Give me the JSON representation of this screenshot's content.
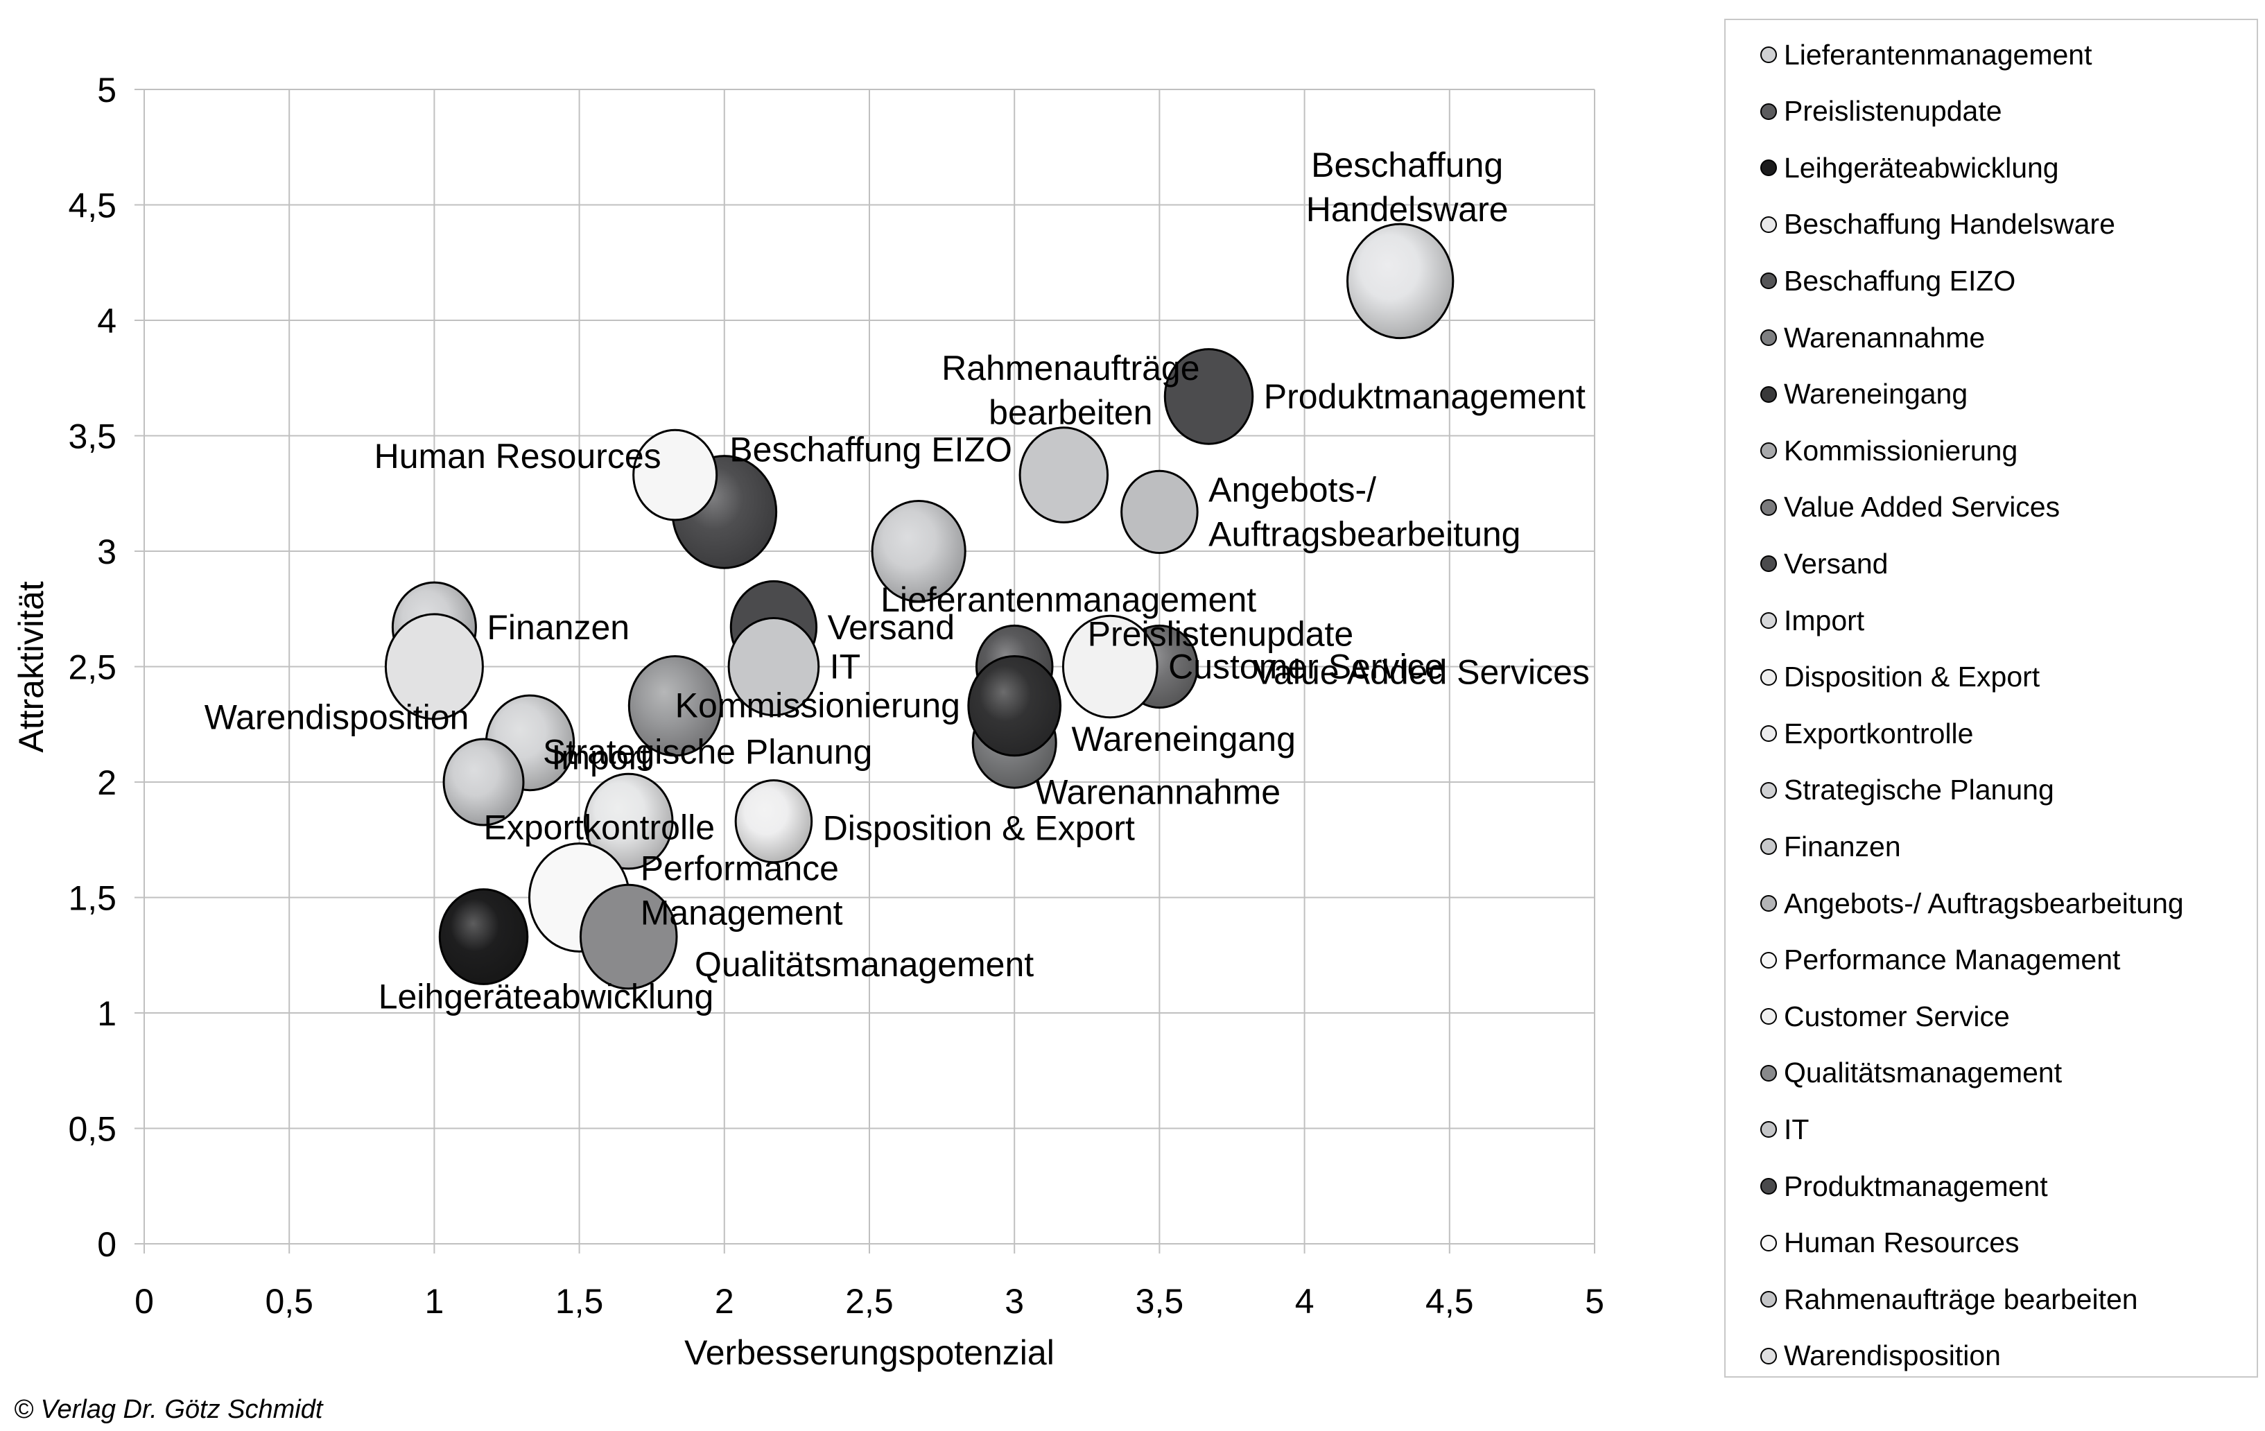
{
  "chart_data": {
    "type": "scatter",
    "subtype": "bubble",
    "title": "",
    "xlabel": "Verbesserungspotenzial",
    "ylabel": "Attraktivität",
    "xlim": [
      0,
      5
    ],
    "ylim": [
      0,
      5
    ],
    "xticks": [
      "0",
      "0,5",
      "1",
      "1,5",
      "2",
      "2,5",
      "3",
      "3,5",
      "4",
      "4,5",
      "5"
    ],
    "yticks": [
      "0",
      "0,5",
      "1",
      "1,5",
      "2",
      "2,5",
      "3",
      "3,5",
      "4",
      "4,5",
      "5"
    ],
    "xtick_values": [
      0,
      0.5,
      1,
      1.5,
      2,
      2.5,
      3,
      3.5,
      4,
      4.5,
      5
    ],
    "ytick_values": [
      0,
      0.5,
      1,
      1.5,
      2,
      2.5,
      3,
      3.5,
      4,
      4.5,
      5
    ],
    "grid": true,
    "legend_position": "right",
    "series": [
      {
        "name": "Lieferantenmanagement",
        "x": 2.67,
        "y": 3.0,
        "size": 45,
        "color": "#cfd0d2",
        "shaded": true,
        "label_lines": [
          "Lieferantenmanagement"
        ],
        "label_pos": "below-right"
      },
      {
        "name": "Preislistenupdate",
        "x": 3.0,
        "y": 2.5,
        "size": 30,
        "color": "#5a5a5c",
        "shaded": true,
        "label_lines": [
          "Preislistenupdate"
        ],
        "label_pos": "above-right"
      },
      {
        "name": "Leihgeräteabwicklung",
        "x": 1.17,
        "y": 1.33,
        "size": 40,
        "color": "#1e1e1f",
        "shaded": true,
        "label_lines": [
          "Leihgeräteabwicklung"
        ],
        "label_pos": "below"
      },
      {
        "name": "Beschaffung Handelsware",
        "x": 4.33,
        "y": 4.17,
        "size": 58,
        "color": "#e4e5e7",
        "shaded": true,
        "label_lines": [
          "Beschaffung",
          "Handelsware"
        ],
        "label_pos": "above"
      },
      {
        "name": "Beschaffung EIZO",
        "x": 2.0,
        "y": 3.17,
        "size": 56,
        "color": "#4f4f51",
        "shaded": true,
        "label_lines": [
          "Beschaffung EIZO"
        ],
        "label_pos": "above-right"
      },
      {
        "name": "Warenannahme",
        "x": 3.0,
        "y": 2.17,
        "size": 36,
        "color": "#7c7d7f",
        "shaded": true,
        "label_lines": [
          "Warenannahme"
        ],
        "label_pos": "below-right"
      },
      {
        "name": "Wareneingang",
        "x": 3.0,
        "y": 2.33,
        "size": 44,
        "color": "#333334",
        "shaded": true,
        "label_lines": [
          "Wareneingang"
        ],
        "label_pos": "right"
      },
      {
        "name": "Kommissionierung",
        "x": 1.83,
        "y": 2.33,
        "size": 44,
        "color": "#9a9b9d",
        "shaded": true,
        "label_lines": [
          "Kommissionierung"
        ],
        "label_pos": "below-right"
      },
      {
        "name": "Value Added Services",
        "x": 3.5,
        "y": 2.5,
        "size": 30,
        "color": "#727274",
        "shaded": true,
        "label_lines": [
          "Value Added Services"
        ],
        "label_pos": "below-right"
      },
      {
        "name": "Versand",
        "x": 2.17,
        "y": 2.67,
        "size": 38,
        "color": "#4b4b4d",
        "shaded": false,
        "label_lines": [
          "Versand"
        ],
        "label_pos": "right"
      },
      {
        "name": "Import",
        "x": 1.33,
        "y": 2.17,
        "size": 40,
        "color": "#d4d5d7",
        "shaded": true,
        "label_lines": [
          "Import"
        ],
        "label_pos": "below-right"
      },
      {
        "name": "Disposition & Export",
        "x": 2.17,
        "y": 1.83,
        "size": 30,
        "color": "#eeeeef",
        "shaded": true,
        "label_lines": [
          "Disposition & Export"
        ],
        "label_pos": "right"
      },
      {
        "name": "Exportkontrolle",
        "x": 1.17,
        "y": 2.0,
        "size": 33,
        "color": "#cfd0d2",
        "shaded": true,
        "label_lines": [
          "Exportkontrolle"
        ],
        "label_pos": "below"
      },
      {
        "name": "Strategische Planung",
        "x": 1.67,
        "y": 1.83,
        "size": 40,
        "color": "#e6e7e8",
        "shaded": true,
        "label_lines": [
          "Strategische Planung"
        ],
        "label_pos": "above-right"
      },
      {
        "name": "Finanzen",
        "x": 1.0,
        "y": 2.67,
        "size": 36,
        "color": "#cfd0d2",
        "shaded": true,
        "label_lines": [
          "Finanzen"
        ],
        "label_pos": "right"
      },
      {
        "name": "Angebots-/ Auftragsbearbeitung",
        "x": 3.5,
        "y": 3.17,
        "size": 30,
        "color": "#bdbec0",
        "shaded": false,
        "label_lines": [
          "Angebots-/",
          "Auftragsbearbeitung"
        ],
        "label_pos": "right"
      },
      {
        "name": "Performance Management",
        "x": 1.5,
        "y": 1.5,
        "size": 52,
        "color": "#f8f8f8",
        "shaded": false,
        "label_lines": [
          "Performance",
          "Management"
        ],
        "label_pos": "right"
      },
      {
        "name": "Customer Service",
        "x": 3.33,
        "y": 2.5,
        "size": 46,
        "color": "#f2f2f2",
        "shaded": false,
        "label_lines": [
          "Customer Service"
        ],
        "label_pos": "right"
      },
      {
        "name": "Qualitätsmanagement",
        "x": 1.67,
        "y": 1.33,
        "size": 48,
        "color": "#8a8a8c",
        "shaded": false,
        "label_lines": [
          "Qualitätsmanagement"
        ],
        "label_pos": "right"
      },
      {
        "name": "IT",
        "x": 2.17,
        "y": 2.5,
        "size": 42,
        "color": "#c6c7c9",
        "shaded": false,
        "label_lines": [
          "IT"
        ],
        "label_pos": "right"
      },
      {
        "name": "Produktmanagement",
        "x": 3.67,
        "y": 3.67,
        "size": 40,
        "color": "#4c4c4e",
        "shaded": false,
        "label_lines": [
          "Produktmanagement"
        ],
        "label_pos": "right"
      },
      {
        "name": "Human Resources",
        "x": 1.83,
        "y": 3.33,
        "size": 36,
        "color": "#f6f6f6",
        "shaded": false,
        "label_lines": [
          "Human Resources"
        ],
        "label_pos": "left"
      },
      {
        "name": "Rahmenaufträge bearbeiten",
        "x": 3.17,
        "y": 3.33,
        "size": 40,
        "color": "#c6c7c9",
        "shaded": false,
        "label_lines": [
          "Rahmenaufträge",
          "bearbeiten"
        ],
        "label_pos": "above"
      },
      {
        "name": "Warendisposition",
        "x": 1.0,
        "y": 2.5,
        "size": 49,
        "color": "#e2e2e3",
        "shaded": false,
        "label_lines": [
          "Warendisposition"
        ],
        "label_pos": "below-left"
      }
    ]
  },
  "legend": {
    "items": [
      {
        "label": "Lieferantenmanagement",
        "color": "#d0d1d3"
      },
      {
        "label": "Preislistenupdate",
        "color": "#5c5c5e"
      },
      {
        "label": "Leihgeräteabwicklung",
        "color": "#1c1c1d"
      },
      {
        "label": "Beschaffung Handelsware",
        "color": "#e8e8e9"
      },
      {
        "label": "Beschaffung EIZO",
        "color": "#555557"
      },
      {
        "label": "Warenannahme",
        "color": "#7e7f81"
      },
      {
        "label": "Wareneingang",
        "color": "#39393a"
      },
      {
        "label": "Kommissionierung",
        "color": "#a8a9ab"
      },
      {
        "label": "Value Added Services",
        "color": "#7a7a7c"
      },
      {
        "label": "Versand",
        "color": "#4b4b4d"
      },
      {
        "label": "Import",
        "color": "#d6d7d9"
      },
      {
        "label": "Disposition & Export",
        "color": "#efefef"
      },
      {
        "label": "Exportkontrolle",
        "color": "#ececed"
      },
      {
        "label": "Strategische Planung",
        "color": "#cfd0d2"
      },
      {
        "label": "Finanzen",
        "color": "#c8c9cb"
      },
      {
        "label": "Angebots-/ Auftragsbearbeitung",
        "color": "#b3b4b6"
      },
      {
        "label": "Performance Management",
        "color": "#f6f6f6"
      },
      {
        "label": "Customer Service",
        "color": "#f0f0f0"
      },
      {
        "label": "Qualitätsmanagement",
        "color": "#88898b"
      },
      {
        "label": "IT",
        "color": "#c4c5c7"
      },
      {
        "label": "Produktmanagement",
        "color": "#4a4a4c"
      },
      {
        "label": "Human Resources",
        "color": "#f7f7f7"
      },
      {
        "label": "Rahmenaufträge bearbeiten",
        "color": "#c4c5c7"
      },
      {
        "label": "Warendisposition",
        "color": "#e0e0e1"
      }
    ]
  },
  "footer": {
    "copyright": "© Verlag Dr. Götz Schmidt"
  }
}
